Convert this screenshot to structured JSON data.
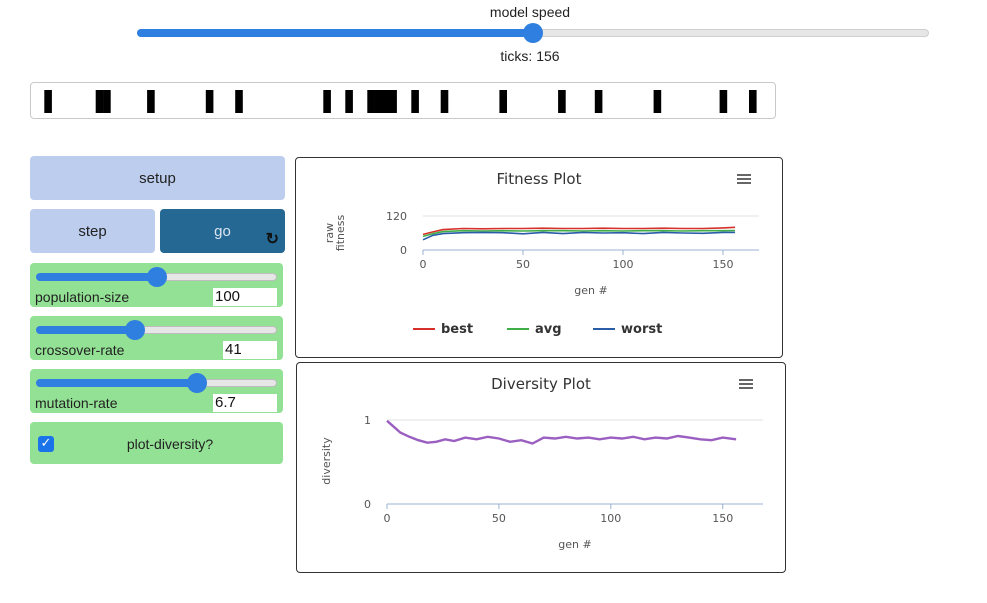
{
  "speed": {
    "label": "model speed",
    "value_fraction": 0.5
  },
  "ticks_label": "ticks: 156",
  "chromosome": {
    "length": 100,
    "ones": [
      1,
      8,
      9,
      15,
      23,
      27,
      39,
      42,
      45,
      46,
      47,
      48,
      51,
      55,
      63,
      71,
      76,
      84,
      93,
      97
    ]
  },
  "buttons": {
    "setup": "setup",
    "step": "step",
    "go": "go",
    "go_icon": "refresh-icon"
  },
  "sliders": [
    {
      "name": "population-size",
      "value": "100",
      "fraction": 0.5
    },
    {
      "name": "crossover-rate",
      "value": "41",
      "fraction": 0.41
    },
    {
      "name": "mutation-rate",
      "value": "6.7",
      "fraction": 0.67
    }
  ],
  "switch": {
    "label": "plot-diversity?",
    "checked": true
  },
  "fitness_plot": {
    "title": "Fitness Plot"
  },
  "diversity_plot": {
    "title": "Diversity Plot"
  },
  "colors": {
    "best": "#d7302a",
    "avg": "#3fae49",
    "worst": "#2a5ca8",
    "diversity": "#9a5fc0",
    "accent": "#2f7fe0"
  },
  "chart_data": [
    {
      "type": "line",
      "title": "Fitness Plot",
      "xlabel": "gen #",
      "ylabel": "raw fitness",
      "xlim": [
        0,
        168
      ],
      "ylim": [
        0,
        120
      ],
      "xticks": [
        "0",
        "50",
        "100",
        "150"
      ],
      "yticks": [
        "0",
        "120"
      ],
      "legend": "bottom",
      "series": [
        {
          "name": "best",
          "color": "#d7302a",
          "x": [
            0,
            5,
            10,
            20,
            30,
            40,
            50,
            60,
            70,
            80,
            90,
            100,
            110,
            120,
            130,
            140,
            150,
            156
          ],
          "y": [
            55,
            64,
            72,
            76,
            75,
            76,
            76,
            77,
            76,
            76,
            77,
            76,
            76,
            77,
            76,
            76,
            78,
            80
          ]
        },
        {
          "name": "avg",
          "color": "#3fae49",
          "x": [
            0,
            5,
            10,
            20,
            30,
            40,
            50,
            60,
            70,
            80,
            90,
            100,
            110,
            120,
            130,
            140,
            150,
            156
          ],
          "y": [
            48,
            58,
            65,
            68,
            67,
            68,
            67,
            68,
            68,
            67,
            68,
            67,
            68,
            68,
            67,
            68,
            68,
            69
          ]
        },
        {
          "name": "worst",
          "color": "#2a5ca8",
          "x": [
            0,
            5,
            10,
            20,
            30,
            40,
            50,
            60,
            70,
            80,
            90,
            100,
            110,
            120,
            130,
            140,
            150,
            156
          ],
          "y": [
            36,
            52,
            58,
            61,
            62,
            61,
            57,
            62,
            58,
            62,
            60,
            61,
            58,
            62,
            60,
            59,
            62,
            62
          ]
        }
      ]
    },
    {
      "type": "line",
      "title": "Diversity Plot",
      "xlabel": "gen #",
      "ylabel": "diversity",
      "xlim": [
        0,
        168
      ],
      "ylim": [
        0,
        1
      ],
      "xticks": [
        "0",
        "50",
        "100",
        "150"
      ],
      "yticks": [
        "0",
        "1"
      ],
      "series": [
        {
          "name": "",
          "color": "#9a5fc0",
          "x": [
            0,
            3,
            6,
            10,
            14,
            18,
            22,
            26,
            30,
            35,
            40,
            45,
            50,
            55,
            60,
            65,
            70,
            75,
            80,
            85,
            90,
            95,
            100,
            105,
            110,
            115,
            120,
            125,
            130,
            135,
            140,
            145,
            150,
            156
          ],
          "y": [
            0.99,
            0.92,
            0.85,
            0.8,
            0.76,
            0.73,
            0.74,
            0.77,
            0.75,
            0.79,
            0.77,
            0.8,
            0.78,
            0.74,
            0.76,
            0.72,
            0.79,
            0.78,
            0.8,
            0.78,
            0.79,
            0.77,
            0.79,
            0.78,
            0.8,
            0.77,
            0.79,
            0.78,
            0.81,
            0.79,
            0.77,
            0.76,
            0.79,
            0.77
          ]
        }
      ]
    }
  ]
}
